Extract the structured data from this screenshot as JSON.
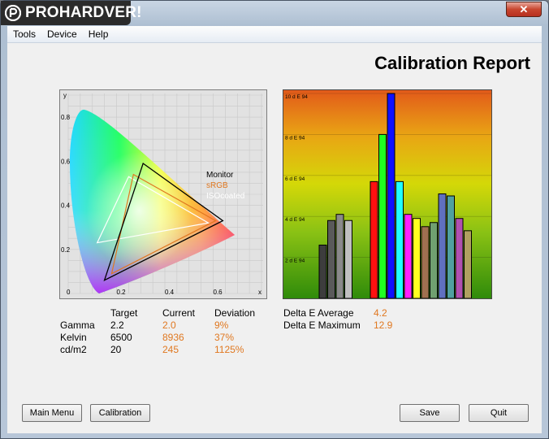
{
  "brand": {
    "name": "PROHARDVER!"
  },
  "window": {
    "close_label": "✕"
  },
  "menu": {
    "items": [
      "Tools",
      "Device",
      "Help"
    ]
  },
  "report": {
    "title": "Calibration Report"
  },
  "chromaticity": {
    "axis_x": "x",
    "axis_y": "y",
    "ticks_x": [
      "0",
      "0.2",
      "0.4",
      "0.6"
    ],
    "ticks_y": [
      "0.2",
      "0.4",
      "0.6",
      "0.8"
    ],
    "legend": [
      {
        "label": "Monitor",
        "color": "#000000"
      },
      {
        "label": "sRGB",
        "color": "#e07820"
      },
      {
        "label": "ISOcoated",
        "color": "#ffffff"
      }
    ],
    "monitor_triangle": [
      [
        0.31,
        0.59
      ],
      [
        0.64,
        0.33
      ],
      [
        0.15,
        0.06
      ]
    ],
    "srgb_triangle": [
      [
        0.27,
        0.54
      ],
      [
        0.61,
        0.33
      ],
      [
        0.18,
        0.09
      ]
    ],
    "iso_triangle": [
      [
        0.25,
        0.53
      ],
      [
        0.58,
        0.32
      ],
      [
        0.12,
        0.23
      ]
    ]
  },
  "chart_data": {
    "type": "bar",
    "ylim": [
      0,
      10
    ],
    "yticks": [
      "2 d E 94",
      "4 d E 94",
      "6 d E 94",
      "8 d E 94",
      "10 d E 94"
    ],
    "values": [
      2.6,
      3.8,
      4.1,
      3.8,
      0,
      0,
      5.7,
      8.0,
      10.0,
      5.7,
      4.1,
      3.9,
      3.5,
      3.7,
      5.1,
      5.0,
      3.9,
      3.3
    ],
    "colors": [
      "#3d3d3d",
      "#5a5a5a",
      "#8a8a8a",
      "#c0c0c0",
      "",
      "",
      "#ff1010",
      "#20ff20",
      "#1010ff",
      "#20ffff",
      "#ff20ff",
      "#ffff20",
      "#a07050",
      "#70a070",
      "#6070c0",
      "#50a0a0",
      "#b050b0",
      "#b0a060"
    ]
  },
  "stats": {
    "headers": [
      "Target",
      "Current",
      "Deviation"
    ],
    "rows": [
      {
        "label": "Gamma",
        "target": "2.2",
        "current": "2.0",
        "deviation": "9%"
      },
      {
        "label": "Kelvin",
        "target": "6500",
        "current": "8936",
        "deviation": "37%"
      },
      {
        "label": "cd/m2",
        "target": "20",
        "current": "245",
        "deviation": "1125%"
      }
    ]
  },
  "delta": {
    "average_label": "Delta E Average",
    "average_value": "4.2",
    "maximum_label": "Delta E Maximum",
    "maximum_value": "12.9"
  },
  "buttons": {
    "main_menu": "Main Menu",
    "calibration": "Calibration",
    "save": "Save",
    "quit": "Quit"
  }
}
